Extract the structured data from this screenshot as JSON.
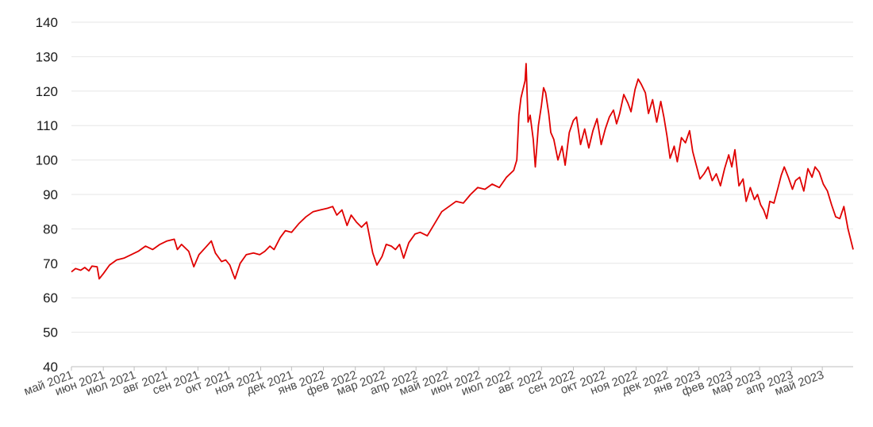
{
  "chart_data": {
    "type": "line",
    "title": "",
    "xlabel": "",
    "ylabel": "",
    "ylim": [
      40,
      140
    ],
    "y_ticks": [
      40,
      50,
      60,
      70,
      80,
      90,
      100,
      110,
      120,
      130,
      140
    ],
    "xlim": [
      "2021-05-01",
      "2023-05-31"
    ],
    "x_tick_labels": [
      "май 2021",
      "июн 2021",
      "июл 2021",
      "авг 2021",
      "сен 2021",
      "окт 2021",
      "ноя 2021",
      "дек 2021",
      "янв 2022",
      "фев 2022",
      "мар 2022",
      "апр 2022",
      "май 2022",
      "июн 2022",
      "июл 2022",
      "авг 2022",
      "сен 2022",
      "окт 2022",
      "ноя 2022",
      "дек 2022",
      "янв 2023",
      "фев 2023",
      "мар 2023",
      "апр 2023",
      "май 2023"
    ],
    "x_tick_dates": [
      "2021-05-01",
      "2021-06-01",
      "2021-07-01",
      "2021-08-01",
      "2021-09-01",
      "2021-10-01",
      "2021-11-01",
      "2021-12-01",
      "2022-01-01",
      "2022-02-01",
      "2022-03-01",
      "2022-04-01",
      "2022-05-01",
      "2022-06-01",
      "2022-07-01",
      "2022-08-01",
      "2022-09-01",
      "2022-10-01",
      "2022-11-01",
      "2022-12-01",
      "2023-01-01",
      "2023-02-01",
      "2023-03-01",
      "2023-04-01",
      "2023-05-01"
    ],
    "grid": true,
    "line_color": "#e00000",
    "series": [
      {
        "points": [
          [
            "2021-05-01",
            67.5
          ],
          [
            "2021-05-05",
            68.5
          ],
          [
            "2021-05-10",
            68.0
          ],
          [
            "2021-05-14",
            68.8
          ],
          [
            "2021-05-18",
            67.8
          ],
          [
            "2021-05-21",
            69.2
          ],
          [
            "2021-05-26",
            69.0
          ],
          [
            "2021-05-28",
            65.5
          ],
          [
            "2021-06-01",
            67.0
          ],
          [
            "2021-06-07",
            69.5
          ],
          [
            "2021-06-14",
            71.0
          ],
          [
            "2021-06-21",
            71.5
          ],
          [
            "2021-06-28",
            72.5
          ],
          [
            "2021-07-05",
            73.5
          ],
          [
            "2021-07-12",
            75.0
          ],
          [
            "2021-07-19",
            74.0
          ],
          [
            "2021-07-26",
            75.5
          ],
          [
            "2021-08-02",
            76.5
          ],
          [
            "2021-08-09",
            77.0
          ],
          [
            "2021-08-12",
            74.0
          ],
          [
            "2021-08-16",
            75.5
          ],
          [
            "2021-08-23",
            73.5
          ],
          [
            "2021-08-28",
            69.0
          ],
          [
            "2021-09-02",
            72.5
          ],
          [
            "2021-09-08",
            74.5
          ],
          [
            "2021-09-14",
            76.5
          ],
          [
            "2021-09-18",
            73.0
          ],
          [
            "2021-09-24",
            70.5
          ],
          [
            "2021-09-28",
            71.0
          ],
          [
            "2021-10-02",
            69.5
          ],
          [
            "2021-10-05",
            67.0
          ],
          [
            "2021-10-07",
            65.5
          ],
          [
            "2021-10-12",
            70.0
          ],
          [
            "2021-10-18",
            72.5
          ],
          [
            "2021-10-25",
            73.0
          ],
          [
            "2021-10-31",
            72.5
          ],
          [
            "2021-11-05",
            73.5
          ],
          [
            "2021-11-10",
            75.0
          ],
          [
            "2021-11-14",
            74.0
          ],
          [
            "2021-11-20",
            77.5
          ],
          [
            "2021-11-25",
            79.5
          ],
          [
            "2021-12-01",
            79.0
          ],
          [
            "2021-12-08",
            81.5
          ],
          [
            "2021-12-15",
            83.5
          ],
          [
            "2021-12-22",
            85.0
          ],
          [
            "2021-12-29",
            85.5
          ],
          [
            "2022-01-05",
            86.0
          ],
          [
            "2022-01-10",
            86.5
          ],
          [
            "2022-01-14",
            84.0
          ],
          [
            "2022-01-19",
            85.5
          ],
          [
            "2022-01-24",
            81.0
          ],
          [
            "2022-01-28",
            84.0
          ],
          [
            "2022-02-02",
            82.0
          ],
          [
            "2022-02-07",
            80.5
          ],
          [
            "2022-02-12",
            82.0
          ],
          [
            "2022-02-18",
            73.0
          ],
          [
            "2022-02-22",
            69.5
          ],
          [
            "2022-02-27",
            72.0
          ],
          [
            "2022-03-03",
            75.5
          ],
          [
            "2022-03-08",
            75.0
          ],
          [
            "2022-03-12",
            74.0
          ],
          [
            "2022-03-16",
            75.5
          ],
          [
            "2022-03-20",
            71.5
          ],
          [
            "2022-03-25",
            76.0
          ],
          [
            "2022-03-31",
            78.5
          ],
          [
            "2022-04-05",
            79.0
          ],
          [
            "2022-04-12",
            78.0
          ],
          [
            "2022-04-19",
            81.5
          ],
          [
            "2022-04-26",
            85.0
          ],
          [
            "2022-05-03",
            86.5
          ],
          [
            "2022-05-10",
            88.0
          ],
          [
            "2022-05-17",
            87.5
          ],
          [
            "2022-05-24",
            90.0
          ],
          [
            "2022-05-31",
            92.0
          ],
          [
            "2022-06-07",
            91.5
          ],
          [
            "2022-06-14",
            93.0
          ],
          [
            "2022-06-21",
            92.0
          ],
          [
            "2022-06-28",
            95.0
          ],
          [
            "2022-07-05",
            97.0
          ],
          [
            "2022-07-08",
            100.0
          ],
          [
            "2022-07-10",
            113.0
          ],
          [
            "2022-07-12",
            118.0
          ],
          [
            "2022-07-14",
            120.5
          ],
          [
            "2022-07-16",
            123.0
          ],
          [
            "2022-07-17",
            128.0
          ],
          [
            "2022-07-19",
            111.0
          ],
          [
            "2022-07-21",
            113.0
          ],
          [
            "2022-07-24",
            106.0
          ],
          [
            "2022-07-26",
            98.0
          ],
          [
            "2022-07-29",
            110.0
          ],
          [
            "2022-08-01",
            116.0
          ],
          [
            "2022-08-03",
            121.0
          ],
          [
            "2022-08-05",
            119.5
          ],
          [
            "2022-08-08",
            113.5
          ],
          [
            "2022-08-10",
            108.0
          ],
          [
            "2022-08-13",
            106.0
          ],
          [
            "2022-08-17",
            100.0
          ],
          [
            "2022-08-21",
            104.0
          ],
          [
            "2022-08-24",
            98.5
          ],
          [
            "2022-08-28",
            108.0
          ],
          [
            "2022-09-01",
            111.5
          ],
          [
            "2022-09-04",
            112.5
          ],
          [
            "2022-09-08",
            104.5
          ],
          [
            "2022-09-12",
            109.0
          ],
          [
            "2022-09-16",
            103.5
          ],
          [
            "2022-09-20",
            108.5
          ],
          [
            "2022-09-24",
            112.0
          ],
          [
            "2022-09-28",
            104.5
          ],
          [
            "2022-10-02",
            109.0
          ],
          [
            "2022-10-06",
            112.5
          ],
          [
            "2022-10-10",
            114.5
          ],
          [
            "2022-10-13",
            110.5
          ],
          [
            "2022-10-16",
            113.5
          ],
          [
            "2022-10-20",
            119.0
          ],
          [
            "2022-10-24",
            116.5
          ],
          [
            "2022-10-27",
            114.0
          ],
          [
            "2022-10-31",
            120.5
          ],
          [
            "2022-11-03",
            123.5
          ],
          [
            "2022-11-06",
            122.0
          ],
          [
            "2022-11-10",
            119.5
          ],
          [
            "2022-11-13",
            113.5
          ],
          [
            "2022-11-17",
            117.5
          ],
          [
            "2022-11-21",
            111.0
          ],
          [
            "2022-11-25",
            117.0
          ],
          [
            "2022-11-28",
            112.5
          ],
          [
            "2022-12-01",
            107.0
          ],
          [
            "2022-12-04",
            100.5
          ],
          [
            "2022-12-08",
            104.0
          ],
          [
            "2022-12-11",
            99.5
          ],
          [
            "2022-12-15",
            106.5
          ],
          [
            "2022-12-19",
            105.0
          ],
          [
            "2022-12-23",
            108.5
          ],
          [
            "2022-12-26",
            102.5
          ],
          [
            "2022-12-29",
            99.0
          ],
          [
            "2023-01-02",
            94.5
          ],
          [
            "2023-01-06",
            96.0
          ],
          [
            "2023-01-10",
            98.0
          ],
          [
            "2023-01-14",
            94.0
          ],
          [
            "2023-01-18",
            96.0
          ],
          [
            "2023-01-22",
            92.5
          ],
          [
            "2023-01-26",
            97.5
          ],
          [
            "2023-01-30",
            101.5
          ],
          [
            "2023-02-02",
            98.0
          ],
          [
            "2023-02-05",
            103.0
          ],
          [
            "2023-02-09",
            92.5
          ],
          [
            "2023-02-13",
            94.5
          ],
          [
            "2023-02-16",
            88.0
          ],
          [
            "2023-02-20",
            92.0
          ],
          [
            "2023-02-24",
            88.5
          ],
          [
            "2023-02-27",
            90.0
          ],
          [
            "2023-03-02",
            87.0
          ],
          [
            "2023-03-05",
            85.5
          ],
          [
            "2023-03-08",
            83.0
          ],
          [
            "2023-03-11",
            88.0
          ],
          [
            "2023-03-15",
            87.5
          ],
          [
            "2023-03-19",
            92.0
          ],
          [
            "2023-03-22",
            95.5
          ],
          [
            "2023-03-25",
            98.0
          ],
          [
            "2023-03-29",
            95.0
          ],
          [
            "2023-04-02",
            91.5
          ],
          [
            "2023-04-05",
            94.0
          ],
          [
            "2023-04-09",
            95.0
          ],
          [
            "2023-04-13",
            91.0
          ],
          [
            "2023-04-17",
            97.5
          ],
          [
            "2023-04-21",
            95.0
          ],
          [
            "2023-04-24",
            98.0
          ],
          [
            "2023-04-28",
            96.5
          ],
          [
            "2023-05-02",
            93.0
          ],
          [
            "2023-05-06",
            91.0
          ],
          [
            "2023-05-10",
            87.0
          ],
          [
            "2023-05-14",
            83.5
          ],
          [
            "2023-05-18",
            83.0
          ],
          [
            "2023-05-22",
            86.5
          ],
          [
            "2023-05-26",
            80.0
          ],
          [
            "2023-05-31",
            74.0
          ]
        ]
      }
    ]
  }
}
